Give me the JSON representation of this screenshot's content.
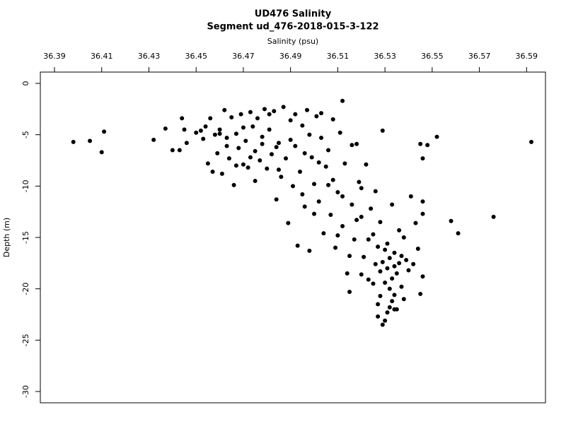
{
  "chart_data": {
    "type": "scatter",
    "title": "UD476 Salinity",
    "subtitle": "Segment ud_476-2018-015-3-122",
    "x_label": "Salinity (psu)",
    "y_label": "Depth (m)",
    "xlim": [
      36.384,
      36.598
    ],
    "ylim": [
      -31.1,
      1.1
    ],
    "xticks": [
      36.39,
      36.41,
      36.43,
      36.45,
      36.47,
      36.49,
      36.51,
      36.53,
      36.55,
      36.57,
      36.59
    ],
    "yticks": [
      0,
      -5,
      -10,
      -15,
      -20,
      -25,
      -30
    ],
    "color": "#000000",
    "series": [
      {
        "name": "Salinity",
        "x": [
          36.398,
          36.405,
          36.411,
          36.41,
          36.432,
          36.592,
          36.576,
          36.561,
          36.558,
          36.552,
          36.546,
          36.548,
          36.545,
          36.546,
          36.546,
          36.546,
          36.545,
          36.512,
          36.529,
          36.541,
          36.534,
          36.437,
          36.44,
          36.443,
          36.444,
          36.445,
          36.446,
          36.45,
          36.452,
          36.453,
          36.454,
          36.455,
          36.456,
          36.457,
          36.458,
          36.459,
          36.46,
          36.461,
          36.462,
          36.463,
          36.464,
          36.465,
          36.466,
          36.467,
          36.468,
          36.469,
          36.47,
          36.471,
          36.472,
          36.473,
          36.474,
          36.475,
          36.476,
          36.477,
          36.478,
          36.479,
          36.48,
          36.481,
          36.482,
          36.483,
          36.484,
          36.485,
          36.486,
          36.487,
          36.488,
          36.489,
          36.49,
          36.491,
          36.492,
          36.493,
          36.494,
          36.495,
          36.496,
          36.497,
          36.498,
          36.499,
          36.5,
          36.501,
          36.502,
          36.503,
          36.504,
          36.505,
          36.506,
          36.507,
          36.508,
          36.509,
          36.51,
          36.511,
          36.512,
          36.513,
          36.514,
          36.515,
          36.516,
          36.517,
          36.518,
          36.519,
          36.52,
          36.521,
          36.522,
          36.523,
          36.524,
          36.525,
          36.526,
          36.527,
          36.528,
          36.528,
          36.529,
          36.53,
          36.53,
          36.531,
          36.531,
          36.532,
          36.532,
          36.533,
          36.533,
          36.534,
          36.534,
          36.535,
          36.536,
          36.537,
          36.538,
          36.539,
          36.54,
          36.528,
          36.531,
          36.526,
          36.533,
          36.536,
          36.538,
          36.542,
          36.543,
          36.544,
          36.52,
          36.516,
          36.506,
          36.498,
          36.503,
          36.492,
          36.481,
          36.47,
          36.475,
          36.485,
          36.495,
          36.5,
          36.51,
          36.515,
          36.52,
          36.525,
          36.527,
          36.53,
          36.535,
          36.532,
          36.529,
          36.534,
          36.537,
          36.527,
          36.523,
          36.518,
          36.512,
          36.508,
          36.502,
          36.496,
          36.49,
          36.484,
          36.478,
          36.473,
          36.467,
          36.463,
          36.46
        ],
        "values": [
          -5.7,
          -5.6,
          -4.7,
          -6.7,
          -5.5,
          -5.7,
          -13.0,
          -14.6,
          -13.4,
          -5.2,
          -7.3,
          -6.0,
          -5.9,
          -11.5,
          -12.7,
          -18.8,
          -20.5,
          -1.7,
          -4.6,
          -11.0,
          -22.0,
          -4.4,
          -6.5,
          -6.5,
          -3.4,
          -4.5,
          -5.8,
          -4.8,
          -4.6,
          -5.4,
          -4.2,
          -7.8,
          -3.4,
          -8.6,
          -5.0,
          -6.8,
          -4.5,
          -8.8,
          -2.6,
          -5.3,
          -7.3,
          -3.3,
          -9.9,
          -4.9,
          -6.3,
          -3.0,
          -7.9,
          -5.6,
          -8.2,
          -2.8,
          -4.2,
          -6.6,
          -3.4,
          -7.5,
          -5.2,
          -2.5,
          -8.3,
          -4.5,
          -6.9,
          -2.7,
          -11.3,
          -5.8,
          -9.1,
          -2.3,
          -7.3,
          -13.6,
          -3.6,
          -10.0,
          -6.1,
          -15.8,
          -8.6,
          -4.1,
          -12.0,
          -2.6,
          -16.3,
          -7.2,
          -9.8,
          -3.2,
          -11.5,
          -5.3,
          -14.6,
          -8.1,
          -6.5,
          -12.8,
          -3.5,
          -16.0,
          -10.6,
          -4.8,
          -13.9,
          -7.8,
          -18.5,
          -20.3,
          -11.8,
          -15.2,
          -5.9,
          -9.6,
          -13.0,
          -16.9,
          -7.9,
          -19.1,
          -12.2,
          -14.7,
          -17.6,
          -21.5,
          -18.3,
          -20.7,
          -23.5,
          -19.4,
          -16.2,
          -22.3,
          -18.0,
          -20.0,
          -17.0,
          -21.2,
          -19.0,
          -16.5,
          -20.6,
          -18.5,
          -17.5,
          -19.8,
          -21.0,
          -17.2,
          -18.2,
          -13.5,
          -15.6,
          -10.5,
          -11.8,
          -14.3,
          -15.0,
          -17.6,
          -13.6,
          -16.1,
          -10.2,
          -6.0,
          -9.9,
          -5.0,
          -2.9,
          -3.0,
          -3.0,
          -4.3,
          -9.5,
          -8.4,
          -10.8,
          -12.7,
          -14.8,
          -16.8,
          -18.6,
          -19.5,
          -22.7,
          -23.1,
          -22.0,
          -21.8,
          -17.4,
          -17.8,
          -16.8,
          -15.9,
          -15.2,
          -13.3,
          -11.0,
          -9.4,
          -7.7,
          -6.8,
          -5.5,
          -6.2,
          -5.9,
          -7.2,
          -8.0,
          -6.1,
          -4.9
        ]
      }
    ]
  }
}
